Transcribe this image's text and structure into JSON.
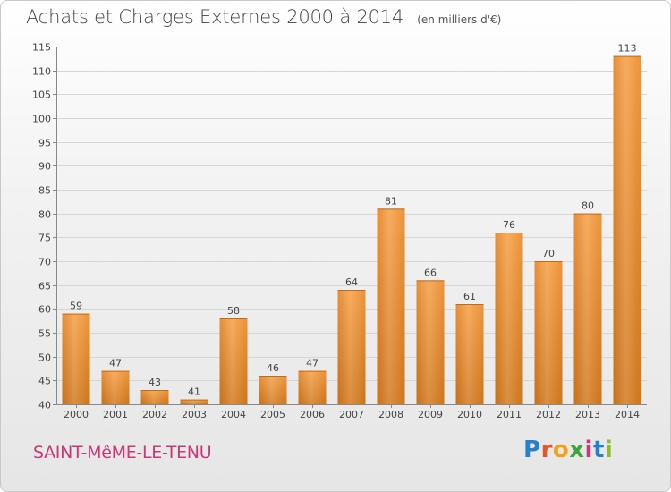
{
  "header": {
    "title": "Achats et Charges Externes 2000 à 2014",
    "subtitle": "(en milliers d'€)"
  },
  "footer": {
    "commune": "SAINT-MêME-LE-TENU",
    "logo": {
      "letters": [
        "P",
        "r",
        "o",
        "x",
        "i",
        "t",
        "i"
      ],
      "colors": [
        "#2a7fc9",
        "#e8542a",
        "#f0a21c",
        "#3aa63a",
        "#d0357a",
        "#2a7fc9",
        "#8cbc2a"
      ]
    }
  },
  "chart_data": {
    "type": "bar",
    "categories": [
      "2000",
      "2001",
      "2002",
      "2003",
      "2004",
      "2005",
      "2006",
      "2007",
      "2008",
      "2009",
      "2010",
      "2011",
      "2012",
      "2013",
      "2014"
    ],
    "values": [
      59,
      47,
      43,
      41,
      58,
      46,
      47,
      64,
      81,
      66,
      61,
      76,
      70,
      80,
      113
    ],
    "ylim": [
      40,
      115
    ],
    "yticks": [
      40,
      45,
      50,
      55,
      60,
      65,
      70,
      75,
      80,
      85,
      90,
      95,
      100,
      105,
      110,
      115
    ],
    "grid": true,
    "bar_color": "#f09a3a"
  }
}
